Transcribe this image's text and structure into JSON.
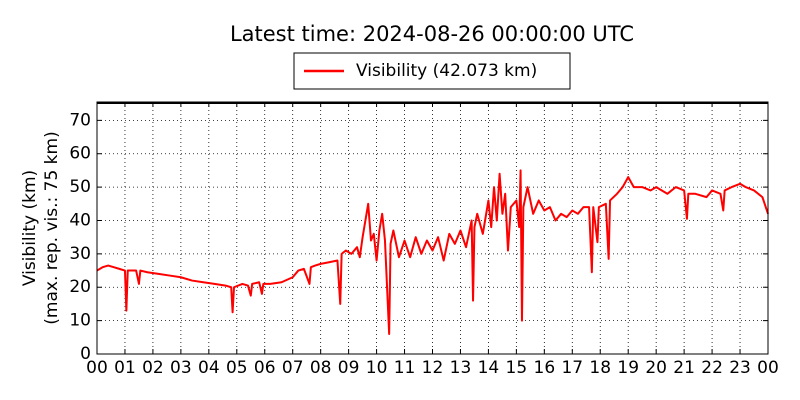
{
  "chart_data": {
    "type": "line",
    "title": "Latest time: 2024-08-26 00:00:00 UTC",
    "ylabel": [
      "Visibility (km)",
      "(max. rep. vis.: 75 km)"
    ],
    "series": [
      {
        "name": "Visibility (42.073 km)",
        "color": "#ff0000",
        "x": [
          0,
          0.2,
          0.4,
          0.6,
          0.8,
          1.0,
          1.05,
          1.1,
          1.4,
          1.5,
          1.55,
          1.8,
          2.2,
          2.6,
          3.0,
          3.4,
          3.8,
          4.2,
          4.6,
          4.8,
          4.85,
          4.9,
          5.2,
          5.4,
          5.5,
          5.55,
          5.8,
          5.9,
          5.95,
          6.2,
          6.6,
          7.0,
          7.2,
          7.4,
          7.6,
          7.65,
          7.8,
          8.0,
          8.3,
          8.6,
          8.7,
          8.75,
          8.9,
          9.1,
          9.3,
          9.4,
          9.5,
          9.7,
          9.8,
          9.9,
          10.0,
          10.1,
          10.2,
          10.3,
          10.45,
          10.5,
          10.6,
          10.8,
          11.0,
          11.2,
          11.4,
          11.6,
          11.8,
          12.0,
          12.2,
          12.4,
          12.6,
          12.8,
          13.0,
          13.2,
          13.4,
          13.45,
          13.5,
          13.6,
          13.8,
          14.0,
          14.1,
          14.2,
          14.3,
          14.4,
          14.5,
          14.6,
          14.7,
          14.8,
          15.0,
          15.1,
          15.15,
          15.2,
          15.25,
          15.4,
          15.6,
          15.8,
          16.0,
          16.2,
          16.4,
          16.6,
          16.8,
          17.0,
          17.2,
          17.4,
          17.6,
          17.7,
          17.75,
          17.9,
          17.95,
          18.2,
          18.3,
          18.35,
          18.6,
          18.8,
          19.0,
          19.2,
          19.5,
          19.8,
          20.0,
          20.4,
          20.7,
          21.0,
          21.1,
          21.15,
          21.4,
          21.8,
          22.0,
          22.3,
          22.4,
          22.45,
          22.7,
          23.0,
          23.2,
          23.5,
          23.8,
          24.0
        ],
        "values": [
          25,
          26,
          26.5,
          26,
          25.5,
          25,
          13,
          25,
          25,
          21,
          25,
          24.5,
          24,
          23.5,
          23,
          22,
          21.5,
          21,
          20.5,
          20,
          12.5,
          20,
          21,
          20.5,
          17.5,
          21,
          21.5,
          18,
          21,
          21,
          21.5,
          23,
          25,
          25.5,
          21,
          26,
          26.5,
          27,
          27.5,
          28,
          15,
          30,
          31,
          30,
          32,
          29,
          35,
          45,
          34,
          36,
          28,
          37,
          42,
          34,
          6,
          33,
          37,
          29,
          34,
          29,
          35,
          30,
          34,
          31,
          35,
          28,
          36,
          33,
          37,
          32,
          40,
          16,
          38,
          42,
          36,
          46,
          38,
          50,
          40,
          54,
          42,
          48,
          31,
          44,
          46,
          38,
          55,
          10,
          44,
          50,
          42,
          46,
          43,
          44,
          40,
          42,
          41,
          43,
          42,
          44,
          44,
          24.5,
          44,
          33.5,
          44,
          45,
          28.5,
          46,
          48,
          50,
          53,
          50,
          50,
          49,
          50,
          48,
          50,
          49,
          40.5,
          48,
          48,
          47,
          49,
          48,
          43,
          49,
          50,
          51,
          50,
          49,
          47,
          42
        ]
      }
    ],
    "xlim": [
      0,
      24
    ],
    "xticks": [
      {
        "value": 0,
        "label": "00"
      },
      {
        "value": 1,
        "label": "01"
      },
      {
        "value": 2,
        "label": "02"
      },
      {
        "value": 3,
        "label": "03"
      },
      {
        "value": 4,
        "label": "04"
      },
      {
        "value": 5,
        "label": "05"
      },
      {
        "value": 6,
        "label": "06"
      },
      {
        "value": 7,
        "label": "07"
      },
      {
        "value": 8,
        "label": "08"
      },
      {
        "value": 9,
        "label": "09"
      },
      {
        "value": 10,
        "label": "10"
      },
      {
        "value": 11,
        "label": "11"
      },
      {
        "value": 12,
        "label": "12"
      },
      {
        "value": 13,
        "label": "13"
      },
      {
        "value": 14,
        "label": "14"
      },
      {
        "value": 15,
        "label": "15"
      },
      {
        "value": 16,
        "label": "16"
      },
      {
        "value": 17,
        "label": "17"
      },
      {
        "value": 18,
        "label": "18"
      },
      {
        "value": 19,
        "label": "19"
      },
      {
        "value": 20,
        "label": "20"
      },
      {
        "value": 21,
        "label": "21"
      },
      {
        "value": 22,
        "label": "22"
      },
      {
        "value": 23,
        "label": "23"
      },
      {
        "value": 24,
        "label": "00"
      }
    ],
    "ylim": [
      0,
      75.5
    ],
    "yticks": [
      0,
      10,
      20,
      30,
      40,
      50,
      60,
      70
    ],
    "grid": true,
    "legend": "top"
  }
}
